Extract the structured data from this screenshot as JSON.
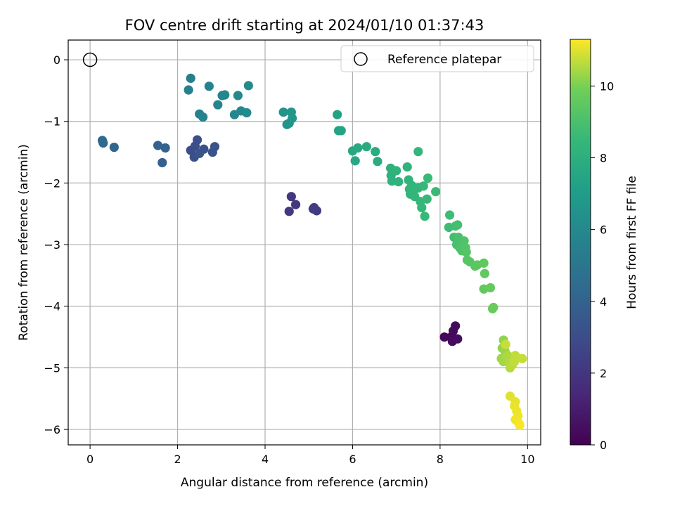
{
  "chart_data": {
    "type": "scatter",
    "title": "FOV centre drift starting at 2024/01/10 01:37:43",
    "xlabel": "Angular distance from reference (arcmin)",
    "ylabel": "Rotation from reference (arcmin)",
    "xlim": [
      -0.5,
      10.3
    ],
    "ylim": [
      -6.25,
      0.32
    ],
    "xticks": [
      0,
      2,
      4,
      6,
      8,
      10
    ],
    "yticks": [
      0,
      -1,
      -2,
      -3,
      -4,
      -5,
      -6
    ],
    "grid": true,
    "legend": {
      "placement": "top-right",
      "entries": [
        "Reference platepar"
      ]
    },
    "reference_point": {
      "x": 0,
      "y": 0
    },
    "colorbar": {
      "label": "Hours from first FF file",
      "min": 0,
      "max": 11.3,
      "ticks": [
        0,
        2,
        4,
        6,
        8,
        10
      ],
      "colormap": "viridis"
    },
    "points": [
      {
        "x": 8.1,
        "y": -4.5,
        "c": 0.2
      },
      {
        "x": 8.25,
        "y": -4.5,
        "c": 0.25
      },
      {
        "x": 8.3,
        "y": -4.4,
        "c": 0.3
      },
      {
        "x": 8.35,
        "y": -4.32,
        "c": 0.35
      },
      {
        "x": 8.28,
        "y": -4.57,
        "c": 0.4
      },
      {
        "x": 8.4,
        "y": -4.53,
        "c": 0.45
      },
      {
        "x": 4.55,
        "y": -2.46,
        "c": 2.0
      },
      {
        "x": 4.6,
        "y": -2.22,
        "c": 2.05
      },
      {
        "x": 4.7,
        "y": -2.35,
        "c": 2.1
      },
      {
        "x": 5.1,
        "y": -2.42,
        "c": 2.15
      },
      {
        "x": 5.18,
        "y": -2.45,
        "c": 2.2
      },
      {
        "x": 5.12,
        "y": -2.4,
        "c": 2.25
      },
      {
        "x": 2.3,
        "y": -1.47,
        "c": 3.0
      },
      {
        "x": 2.4,
        "y": -1.4,
        "c": 3.05
      },
      {
        "x": 2.45,
        "y": -1.3,
        "c": 3.1
      },
      {
        "x": 2.38,
        "y": -1.58,
        "c": 3.15
      },
      {
        "x": 2.6,
        "y": -1.45,
        "c": 3.2
      },
      {
        "x": 2.8,
        "y": -1.5,
        "c": 3.25
      },
      {
        "x": 2.85,
        "y": -1.41,
        "c": 3.3
      },
      {
        "x": 2.5,
        "y": -1.52,
        "c": 3.35
      },
      {
        "x": 1.55,
        "y": -1.39,
        "c": 3.9
      },
      {
        "x": 1.65,
        "y": -1.67,
        "c": 3.95
      },
      {
        "x": 1.72,
        "y": -1.43,
        "c": 4.0
      },
      {
        "x": 0.55,
        "y": -1.42,
        "c": 4.2
      },
      {
        "x": 0.28,
        "y": -1.31,
        "c": 4.3
      },
      {
        "x": 0.3,
        "y": -1.35,
        "c": 4.35
      },
      {
        "x": 2.3,
        "y": -0.3,
        "c": 5.5
      },
      {
        "x": 2.25,
        "y": -0.49,
        "c": 5.55
      },
      {
        "x": 2.5,
        "y": -0.88,
        "c": 5.6
      },
      {
        "x": 2.58,
        "y": -0.93,
        "c": 5.65
      },
      {
        "x": 2.72,
        "y": -0.43,
        "c": 5.7
      },
      {
        "x": 2.92,
        "y": -0.73,
        "c": 5.75
      },
      {
        "x": 3.02,
        "y": -0.58,
        "c": 5.8
      },
      {
        "x": 3.08,
        "y": -0.57,
        "c": 5.85
      },
      {
        "x": 3.3,
        "y": -0.89,
        "c": 5.9
      },
      {
        "x": 3.38,
        "y": -0.58,
        "c": 5.95
      },
      {
        "x": 3.45,
        "y": -0.83,
        "c": 6.0
      },
      {
        "x": 3.58,
        "y": -0.86,
        "c": 6.05
      },
      {
        "x": 3.62,
        "y": -0.42,
        "c": 6.1
      },
      {
        "x": 4.42,
        "y": -0.85,
        "c": 6.5
      },
      {
        "x": 4.5,
        "y": -1.05,
        "c": 6.55
      },
      {
        "x": 4.55,
        "y": -1.03,
        "c": 6.6
      },
      {
        "x": 4.6,
        "y": -0.85,
        "c": 6.65
      },
      {
        "x": 4.62,
        "y": -0.95,
        "c": 6.7
      },
      {
        "x": 5.65,
        "y": -0.89,
        "c": 7.3
      },
      {
        "x": 5.68,
        "y": -1.15,
        "c": 7.35
      },
      {
        "x": 5.74,
        "y": -1.15,
        "c": 7.4
      },
      {
        "x": 6.0,
        "y": -1.48,
        "c": 7.6
      },
      {
        "x": 6.06,
        "y": -1.64,
        "c": 7.65
      },
      {
        "x": 6.12,
        "y": -1.43,
        "c": 7.7
      },
      {
        "x": 6.32,
        "y": -1.41,
        "c": 7.75
      },
      {
        "x": 6.52,
        "y": -1.49,
        "c": 7.8
      },
      {
        "x": 6.57,
        "y": -1.65,
        "c": 7.85
      },
      {
        "x": 6.87,
        "y": -1.76,
        "c": 8.1
      },
      {
        "x": 6.88,
        "y": -1.88,
        "c": 8.12
      },
      {
        "x": 6.9,
        "y": -1.97,
        "c": 8.15
      },
      {
        "x": 7.0,
        "y": -1.8,
        "c": 8.18
      },
      {
        "x": 7.05,
        "y": -1.98,
        "c": 8.2
      },
      {
        "x": 7.25,
        "y": -1.74,
        "c": 8.22
      },
      {
        "x": 7.28,
        "y": -1.95,
        "c": 8.25
      },
      {
        "x": 7.3,
        "y": -2.1,
        "c": 8.27
      },
      {
        "x": 7.32,
        "y": -2.18,
        "c": 8.3
      },
      {
        "x": 7.35,
        "y": -2.04,
        "c": 8.32
      },
      {
        "x": 7.4,
        "y": -2.12,
        "c": 8.35
      },
      {
        "x": 7.42,
        "y": -2.22,
        "c": 8.37
      },
      {
        "x": 7.5,
        "y": -1.49,
        "c": 8.4
      },
      {
        "x": 7.5,
        "y": -2.08,
        "c": 8.42
      },
      {
        "x": 7.55,
        "y": -2.3,
        "c": 8.45
      },
      {
        "x": 7.58,
        "y": -2.4,
        "c": 8.47
      },
      {
        "x": 7.62,
        "y": -2.05,
        "c": 8.5
      },
      {
        "x": 7.65,
        "y": -2.54,
        "c": 8.52
      },
      {
        "x": 7.7,
        "y": -2.26,
        "c": 8.55
      },
      {
        "x": 7.72,
        "y": -1.92,
        "c": 8.57
      },
      {
        "x": 7.9,
        "y": -2.14,
        "c": 8.6
      },
      {
        "x": 8.22,
        "y": -2.52,
        "c": 8.7
      },
      {
        "x": 8.2,
        "y": -2.72,
        "c": 8.75
      },
      {
        "x": 8.32,
        "y": -2.88,
        "c": 8.8
      },
      {
        "x": 8.35,
        "y": -2.7,
        "c": 8.85
      },
      {
        "x": 8.4,
        "y": -2.68,
        "c": 8.9
      },
      {
        "x": 8.38,
        "y": -3.0,
        "c": 8.95
      },
      {
        "x": 8.42,
        "y": -2.88,
        "c": 9.0
      },
      {
        "x": 8.45,
        "y": -3.05,
        "c": 9.05
      },
      {
        "x": 8.5,
        "y": -3.1,
        "c": 9.1
      },
      {
        "x": 8.55,
        "y": -2.94,
        "c": 9.15
      },
      {
        "x": 8.58,
        "y": -3.05,
        "c": 9.2
      },
      {
        "x": 8.6,
        "y": -3.12,
        "c": 9.25
      },
      {
        "x": 8.62,
        "y": -3.25,
        "c": 9.3
      },
      {
        "x": 8.68,
        "y": -3.28,
        "c": 9.35
      },
      {
        "x": 8.8,
        "y": -3.35,
        "c": 9.4
      },
      {
        "x": 8.85,
        "y": -3.33,
        "c": 9.45
      },
      {
        "x": 9.0,
        "y": -3.3,
        "c": 9.5
      },
      {
        "x": 9.02,
        "y": -3.47,
        "c": 9.55
      },
      {
        "x": 9.0,
        "y": -3.72,
        "c": 9.6
      },
      {
        "x": 9.15,
        "y": -3.7,
        "c": 9.65
      },
      {
        "x": 9.2,
        "y": -4.04,
        "c": 9.7
      },
      {
        "x": 9.22,
        "y": -4.02,
        "c": 9.75
      },
      {
        "x": 9.45,
        "y": -4.55,
        "c": 10.2
      },
      {
        "x": 9.42,
        "y": -4.68,
        "c": 10.25
      },
      {
        "x": 9.48,
        "y": -4.72,
        "c": 10.3
      },
      {
        "x": 9.4,
        "y": -4.85,
        "c": 10.35
      },
      {
        "x": 9.45,
        "y": -4.9,
        "c": 10.4
      },
      {
        "x": 9.52,
        "y": -4.82,
        "c": 10.45
      },
      {
        "x": 9.55,
        "y": -4.8,
        "c": 10.5
      },
      {
        "x": 9.58,
        "y": -4.92,
        "c": 10.55
      },
      {
        "x": 9.6,
        "y": -5.0,
        "c": 10.6
      },
      {
        "x": 9.65,
        "y": -4.95,
        "c": 10.65
      },
      {
        "x": 9.72,
        "y": -4.8,
        "c": 10.7
      },
      {
        "x": 9.7,
        "y": -4.9,
        "c": 10.72
      },
      {
        "x": 9.88,
        "y": -4.85,
        "c": 10.75
      },
      {
        "x": 9.5,
        "y": -4.62,
        "c": 10.78
      },
      {
        "x": 9.6,
        "y": -5.46,
        "c": 11.0
      },
      {
        "x": 9.72,
        "y": -5.55,
        "c": 11.05
      },
      {
        "x": 9.7,
        "y": -5.62,
        "c": 11.1
      },
      {
        "x": 9.75,
        "y": -5.7,
        "c": 11.12
      },
      {
        "x": 9.78,
        "y": -5.78,
        "c": 11.15
      },
      {
        "x": 9.72,
        "y": -5.84,
        "c": 11.18
      },
      {
        "x": 9.8,
        "y": -5.9,
        "c": 11.2
      },
      {
        "x": 9.82,
        "y": -5.93,
        "c": 11.25
      }
    ]
  }
}
